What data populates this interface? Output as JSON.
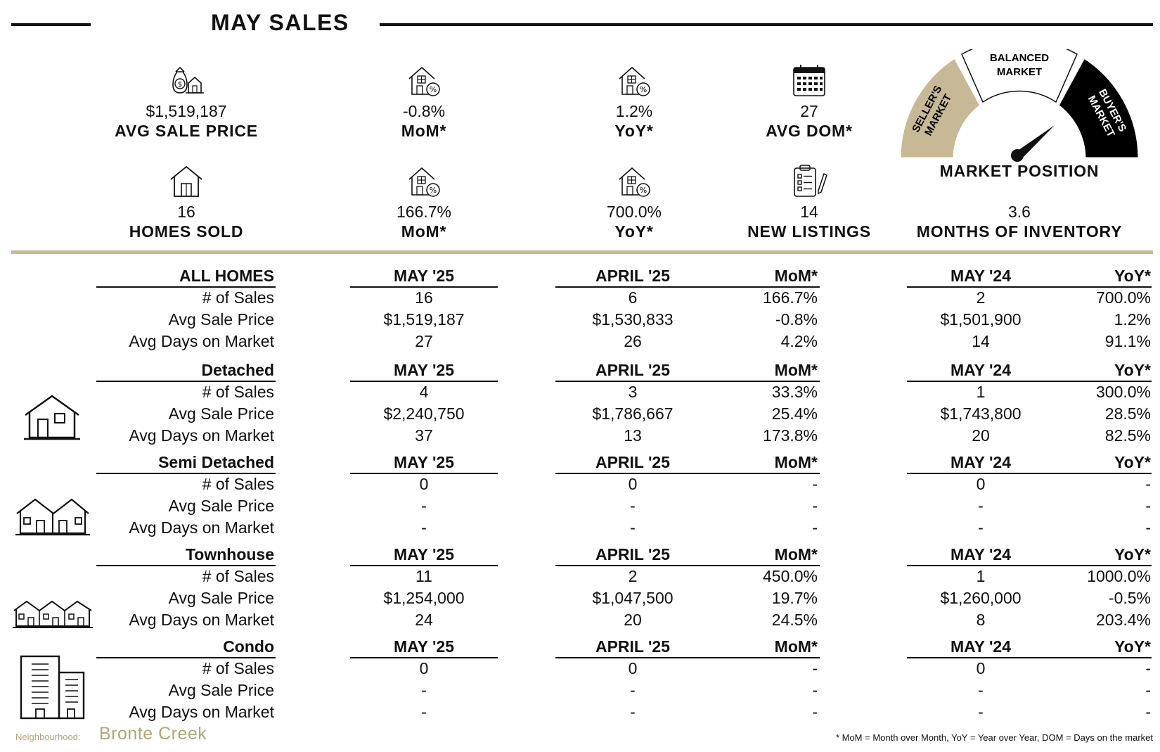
{
  "header": {
    "title": "MAY SALES"
  },
  "stats_top": [
    {
      "value": "$1,519,187",
      "label": "AVG SALE PRICE",
      "icon": "money-bag-house-icon"
    },
    {
      "value": "-0.8%",
      "label": "MoM*",
      "icon": "house-percent-icon"
    },
    {
      "value": "1.2%",
      "label": "YoY*",
      "icon": "house-percent-icon"
    },
    {
      "value": "27",
      "label": "AVG DOM*",
      "icon": "calendar-icon"
    }
  ],
  "stats_bottom": [
    {
      "value": "16",
      "label": "HOMES SOLD",
      "icon": "house-icon"
    },
    {
      "value": "166.7%",
      "label": "MoM*",
      "icon": "house-percent-icon"
    },
    {
      "value": "700.0%",
      "label": "YoY*",
      "icon": "house-percent-icon"
    },
    {
      "value": "14",
      "label": "NEW LISTINGS",
      "icon": "clipboard-pencil-icon"
    }
  ],
  "market": {
    "seller_label_1": "SELLER'S",
    "seller_label_2": "MARKET",
    "balanced_label_1": "BALANCED",
    "balanced_label_2": "MARKET",
    "buyer_label_1": "BUYER'S",
    "buyer_label_2": "MARKET",
    "position_label": "MARKET POSITION",
    "months_inventory_value": "3.6",
    "months_inventory_label": "MONTHS OF INVENTORY",
    "colors": {
      "seller": "#c7b995",
      "balanced": "#ffffff",
      "buyer": "#000000"
    }
  },
  "table": {
    "col_headers": {
      "current": "MAY '25",
      "prev_month": "APRIL '25",
      "mom": "MoM*",
      "prev_year": "MAY '24",
      "yoy": "YoY*"
    },
    "row_labels": [
      "# of Sales",
      "Avg Sale Price",
      "Avg Days on Market"
    ],
    "sections": [
      {
        "name": "ALL HOMES",
        "icon": "",
        "rows": [
          [
            "16",
            "6",
            "166.7%",
            "2",
            "700.0%"
          ],
          [
            "$1,519,187",
            "$1,530,833",
            "-0.8%",
            "$1,501,900",
            "1.2%"
          ],
          [
            "27",
            "26",
            "4.2%",
            "14",
            "91.1%"
          ]
        ]
      },
      {
        "name": "Detached",
        "icon": "detached-house-icon",
        "rows": [
          [
            "4",
            "3",
            "33.3%",
            "1",
            "300.0%"
          ],
          [
            "$2,240,750",
            "$1,786,667",
            "25.4%",
            "$1,743,800",
            "28.5%"
          ],
          [
            "37",
            "13",
            "173.8%",
            "20",
            "82.5%"
          ]
        ]
      },
      {
        "name": "Semi Detached",
        "icon": "semi-detached-icon",
        "rows": [
          [
            "0",
            "0",
            "-",
            "0",
            "-"
          ],
          [
            "-",
            "-",
            "-",
            "-",
            "-"
          ],
          [
            "-",
            "-",
            "-",
            "-",
            "-"
          ]
        ]
      },
      {
        "name": "Townhouse",
        "icon": "townhouse-icon",
        "rows": [
          [
            "11",
            "2",
            "450.0%",
            "1",
            "1000.0%"
          ],
          [
            "$1,254,000",
            "$1,047,500",
            "19.7%",
            "$1,260,000",
            "-0.5%"
          ],
          [
            "24",
            "20",
            "24.5%",
            "8",
            "203.4%"
          ]
        ]
      },
      {
        "name": "Condo",
        "icon": "condo-building-icon",
        "rows": [
          [
            "0",
            "0",
            "-",
            "0",
            "-"
          ],
          [
            "-",
            "-",
            "-",
            "-",
            "-"
          ],
          [
            "-",
            "-",
            "-",
            "-",
            "-"
          ]
        ]
      }
    ]
  },
  "footer": {
    "neighbourhood_label": "Neighbourhood:",
    "neighbourhood_name": "Bronte Creek",
    "note": "* MoM = Month over Month, YoY = Year over Year, DOM = Days on the market"
  }
}
